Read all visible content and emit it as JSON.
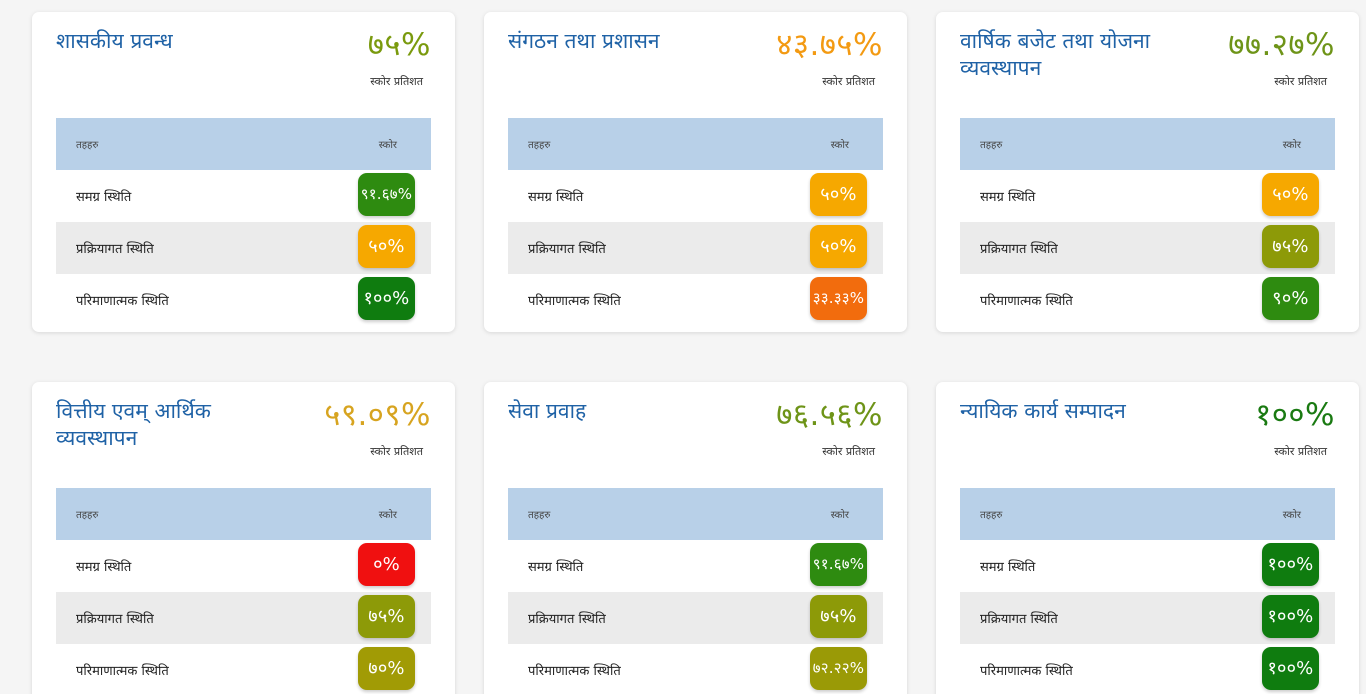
{
  "colors": {
    "title": "#1f62a6",
    "header_bg": "#b8d0e8",
    "alt_row": "#ebebeb"
  },
  "cards": [
    {
      "title": "शासकीय प्रवन्ध",
      "score": "७५%",
      "score_color": "#7a9a0e",
      "score_caption": "स्कोर प्रतिशत",
      "col_indicator": "तहहरु",
      "col_score": "स्कोर",
      "rows": [
        {
          "label": "समग्र स्थिति",
          "value": "९१.६७%",
          "color": "#2e8b10"
        },
        {
          "label": "प्रक्रियागत स्थिति",
          "value": "५०%",
          "color": "#f6a800"
        },
        {
          "label": "परिमाणात्मक स्थिति",
          "value": "१००%",
          "color": "#0f7c0f"
        }
      ]
    },
    {
      "title": "संगठन तथा प्रशासन",
      "score": "४३.७५%",
      "score_color": "#f39a12",
      "score_caption": "स्कोर प्रतिशत",
      "col_indicator": "तहहरु",
      "col_score": "स्कोर",
      "rows": [
        {
          "label": "समग्र स्थिति",
          "value": "५०%",
          "color": "#f6a800"
        },
        {
          "label": "प्रक्रियागत स्थिति",
          "value": "५०%",
          "color": "#f6a800"
        },
        {
          "label": "परिमाणात्मक स्थिति",
          "value": "३३.३३%",
          "color": "#f26c0d"
        }
      ]
    },
    {
      "title": "वार्षिक बजेट तथा योजना व्यवस्थापन",
      "score": "७७.२७%",
      "score_color": "#6e9418",
      "score_caption": "स्कोर प्रतिशत",
      "col_indicator": "तहहरु",
      "col_score": "स्कोर",
      "rows": [
        {
          "label": "समग्र स्थिति",
          "value": "५०%",
          "color": "#f6a800"
        },
        {
          "label": "प्रक्रियागत स्थिति",
          "value": "७५%",
          "color": "#8d9a08"
        },
        {
          "label": "परिमाणात्मक स्थिति",
          "value": "९०%",
          "color": "#2e8b10"
        }
      ]
    },
    {
      "title": "वित्तीय एवम् आर्थिक व्यवस्थापन",
      "score": "५९.०९%",
      "score_color": "#d7a420",
      "score_caption": "स्कोर प्रतिशत",
      "col_indicator": "तहहरु",
      "col_score": "स्कोर",
      "rows": [
        {
          "label": "समग्र स्थिति",
          "value": "०%",
          "color": "#f01010"
        },
        {
          "label": "प्रक्रियागत स्थिति",
          "value": "७५%",
          "color": "#8d9a08"
        },
        {
          "label": "परिमाणात्मक स्थिति",
          "value": "७०%",
          "color": "#a19b05"
        }
      ]
    },
    {
      "title": "सेवा प्रवाह",
      "score": "७६.५६%",
      "score_color": "#6e9418",
      "score_caption": "स्कोर प्रतिशत",
      "col_indicator": "तहहरु",
      "col_score": "स्कोर",
      "rows": [
        {
          "label": "समग्र स्थिति",
          "value": "९१.६७%",
          "color": "#2e8b10"
        },
        {
          "label": "प्रक्रियागत स्थिति",
          "value": "७५%",
          "color": "#8d9a08"
        },
        {
          "label": "परिमाणात्मक स्थिति",
          "value": "७२.२२%",
          "color": "#9a9a06"
        }
      ]
    },
    {
      "title": "न्यायिक कार्य सम्पादन",
      "score": "१००%",
      "score_color": "#1a7a12",
      "score_caption": "स्कोर प्रतिशत",
      "col_indicator": "तहहरु",
      "col_score": "स्कोर",
      "rows": [
        {
          "label": "समग्र स्थिति",
          "value": "१००%",
          "color": "#0f7c0f"
        },
        {
          "label": "प्रक्रियागत स्थिति",
          "value": "१००%",
          "color": "#0f7c0f"
        },
        {
          "label": "परिमाणात्मक स्थिति",
          "value": "१००%",
          "color": "#0f7c0f"
        }
      ]
    }
  ]
}
